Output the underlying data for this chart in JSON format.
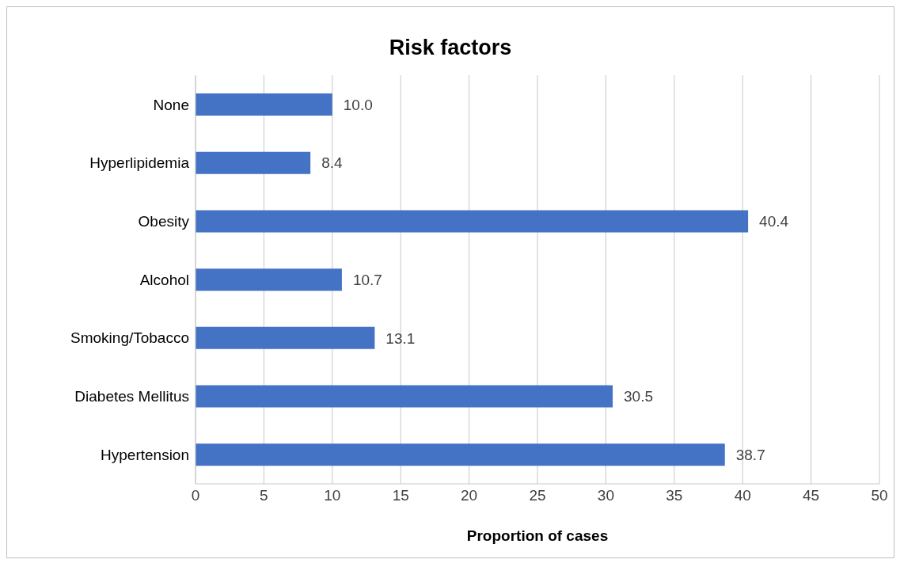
{
  "chart_data": {
    "type": "bar",
    "orientation": "horizontal",
    "title": "Risk factors",
    "xlabel": "Proportion of cases",
    "categories": [
      "None",
      "Hyperlipidemia",
      "Obesity",
      "Alcohol",
      "Smoking/Tobacco",
      "Diabetes Mellitus",
      "Hypertension"
    ],
    "values": [
      10.0,
      8.4,
      40.4,
      10.7,
      13.1,
      30.5,
      38.7
    ],
    "value_labels": [
      "10.0",
      "8.4",
      "40.4",
      "10.7",
      "13.1",
      "30.5",
      "38.7"
    ],
    "color": "#4472c4",
    "xlim": [
      0,
      50
    ],
    "xticks": [
      0,
      5,
      10,
      15,
      20,
      25,
      30,
      35,
      40,
      45,
      50
    ],
    "grid": "x"
  }
}
